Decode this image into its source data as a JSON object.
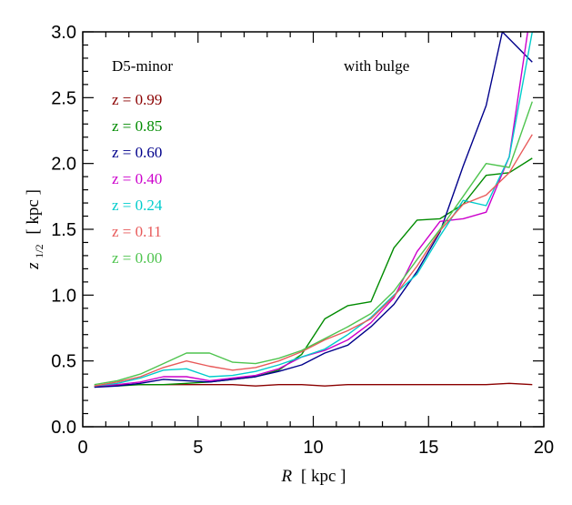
{
  "chart_data": {
    "type": "line",
    "xlabel": {
      "var": "R",
      "unit": "[ kpc ]"
    },
    "ylabel": {
      "var": "z",
      "sub": "1/2",
      "unit": "[ kpc ]"
    },
    "xlim": [
      0,
      20
    ],
    "ylim": [
      0,
      3
    ],
    "xticks": [
      "0",
      "5",
      "10",
      "15",
      "20"
    ],
    "yticks": [
      "0.0",
      "0.5",
      "1.0",
      "1.5",
      "2.0",
      "2.5",
      "3.0"
    ],
    "grid": false,
    "annotations": {
      "left": "D5-minor",
      "right": "with bulge"
    },
    "legend_placement": "top-left",
    "series": [
      {
        "name": "z =  0.99",
        "color": "#8b0000",
        "x": [
          0.5,
          1.5,
          2.5,
          3.5,
          4.5,
          5.5,
          6.5,
          7.5,
          8.5,
          9.5,
          10.5,
          11.5,
          12.5,
          13.5,
          14.5,
          15.5,
          16.5,
          17.5,
          18.5,
          19.5
        ],
        "y": [
          0.31,
          0.32,
          0.32,
          0.32,
          0.32,
          0.32,
          0.32,
          0.31,
          0.32,
          0.32,
          0.31,
          0.32,
          0.32,
          0.32,
          0.32,
          0.32,
          0.32,
          0.32,
          0.33,
          0.32
        ]
      },
      {
        "name": "z =  0.85",
        "color": "#008b00",
        "x": [
          0.5,
          1.5,
          2.5,
          3.5,
          4.5,
          5.5,
          6.5,
          7.5,
          8.5,
          9.5,
          10.5,
          11.5,
          12.5,
          13.5,
          14.5,
          15.5,
          16.5,
          17.5,
          18.5,
          19.5
        ],
        "y": [
          0.31,
          0.31,
          0.32,
          0.32,
          0.33,
          0.34,
          0.36,
          0.38,
          0.43,
          0.55,
          0.82,
          0.92,
          0.95,
          1.36,
          1.57,
          1.58,
          1.69,
          1.91,
          1.93,
          2.04
        ]
      },
      {
        "name": "z =  0.60",
        "color": "#00008b",
        "x": [
          0.5,
          1.5,
          2.5,
          3.5,
          4.5,
          5.5,
          6.5,
          7.5,
          8.5,
          9.5,
          10.5,
          11.5,
          12.5,
          13.5,
          14.5,
          15.5,
          16.5,
          17.5,
          18.2,
          19.5
        ],
        "y": [
          0.3,
          0.31,
          0.33,
          0.36,
          0.35,
          0.34,
          0.36,
          0.38,
          0.42,
          0.47,
          0.56,
          0.62,
          0.76,
          0.93,
          1.18,
          1.48,
          1.98,
          2.44,
          3.0,
          2.77
        ]
      },
      {
        "name": "z =  0.40",
        "color": "#cc00cc",
        "x": [
          0.5,
          1.5,
          2.5,
          3.5,
          4.5,
          5.5,
          6.5,
          7.5,
          8.5,
          9.5,
          10.5,
          11.5,
          12.5,
          13.5,
          14.5,
          15.5,
          16.5,
          17.5,
          18.5,
          19.3
        ],
        "y": [
          0.31,
          0.32,
          0.34,
          0.38,
          0.38,
          0.35,
          0.37,
          0.39,
          0.44,
          0.53,
          0.58,
          0.66,
          0.79,
          0.98,
          1.33,
          1.56,
          1.58,
          1.63,
          2.05,
          3.0
        ]
      },
      {
        "name": "z =  0.24",
        "color": "#00cccc",
        "x": [
          0.5,
          1.5,
          2.5,
          3.5,
          4.5,
          5.5,
          6.5,
          7.5,
          8.5,
          9.5,
          10.5,
          11.5,
          12.5,
          13.5,
          14.5,
          15.5,
          16.5,
          17.5,
          18.5,
          19.5
        ],
        "y": [
          0.31,
          0.33,
          0.37,
          0.43,
          0.44,
          0.38,
          0.39,
          0.42,
          0.47,
          0.53,
          0.59,
          0.7,
          0.83,
          1.0,
          1.16,
          1.45,
          1.72,
          1.68,
          2.05,
          3.0
        ]
      },
      {
        "name": "z =  0.11",
        "color": "#e85a5a",
        "x": [
          0.5,
          1.5,
          2.5,
          3.5,
          4.5,
          5.5,
          6.5,
          7.5,
          8.5,
          9.5,
          10.5,
          11.5,
          12.5,
          13.5,
          14.5,
          15.5,
          16.5,
          17.5,
          18.5,
          19.5
        ],
        "y": [
          0.31,
          0.34,
          0.38,
          0.45,
          0.5,
          0.46,
          0.43,
          0.45,
          0.5,
          0.57,
          0.66,
          0.73,
          0.82,
          0.99,
          1.22,
          1.49,
          1.69,
          1.76,
          1.93,
          2.22
        ]
      },
      {
        "name": "z =  0.00",
        "color": "#4ec44e",
        "x": [
          0.5,
          1.5,
          2.5,
          3.5,
          4.5,
          5.5,
          6.5,
          7.5,
          8.5,
          9.5,
          10.5,
          11.5,
          12.5,
          13.5,
          14.5,
          15.5,
          16.5,
          17.5,
          18.5,
          19.5
        ],
        "y": [
          0.32,
          0.35,
          0.4,
          0.48,
          0.56,
          0.56,
          0.49,
          0.48,
          0.52,
          0.58,
          0.67,
          0.76,
          0.86,
          1.03,
          1.27,
          1.5,
          1.75,
          2.0,
          1.97,
          2.47
        ]
      }
    ]
  }
}
